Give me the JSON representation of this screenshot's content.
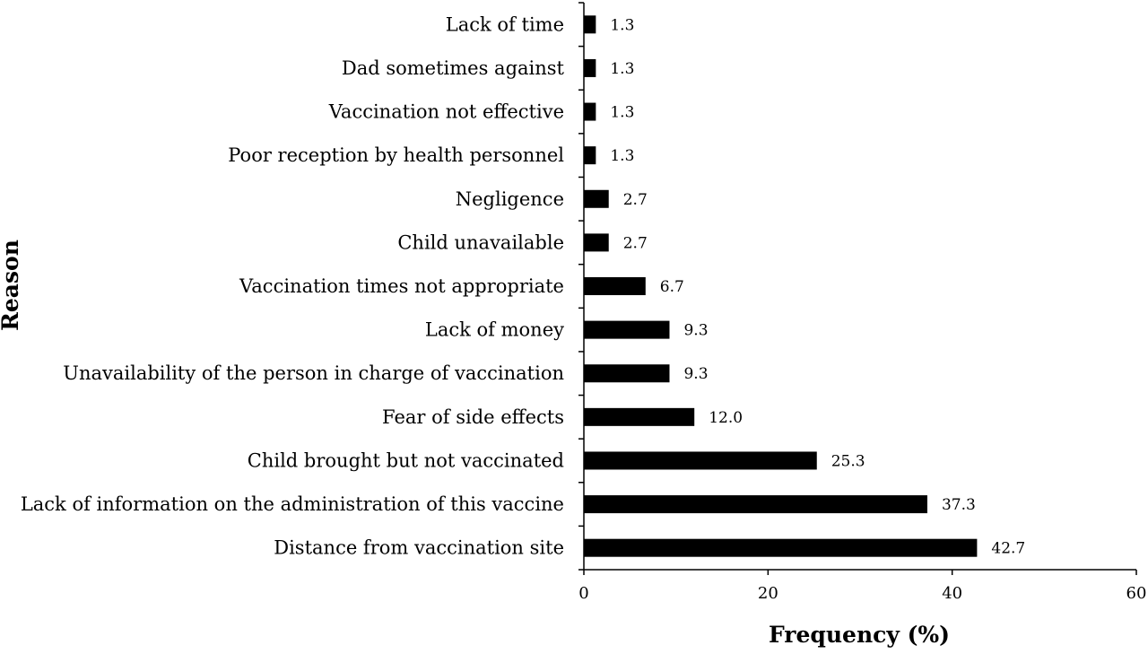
{
  "chart_data": {
    "type": "bar",
    "orientation": "horizontal",
    "categories": [
      "Lack of time",
      "Dad sometimes against",
      "Vaccination not effective",
      "Poor reception by health personnel",
      "Negligence",
      "Child unavailable",
      "Vaccination times not appropriate",
      "Lack of money",
      "Unavailability of the person in charge of vaccination",
      "Fear of side effects",
      "Child brought but not vaccinated",
      "Lack of information on the administration of this vaccine",
      "Distance from vaccination site"
    ],
    "values": [
      1.3,
      1.3,
      1.3,
      1.3,
      2.7,
      2.7,
      6.7,
      9.3,
      9.3,
      12.0,
      25.3,
      37.3,
      42.7
    ],
    "value_labels": [
      "1.3",
      "1.3",
      "1.3",
      "1.3",
      "2.7",
      "2.7",
      "6.7",
      "9.3",
      "9.3",
      "12.0",
      "25.3",
      "37.3",
      "42.7"
    ],
    "xlabel": "Frequency (%)",
    "ylabel": "Reason",
    "xlim": [
      0,
      60
    ],
    "x_ticks": [
      0,
      20,
      40,
      60
    ],
    "bar_color": "#000000",
    "grid": false,
    "legend": "none"
  }
}
